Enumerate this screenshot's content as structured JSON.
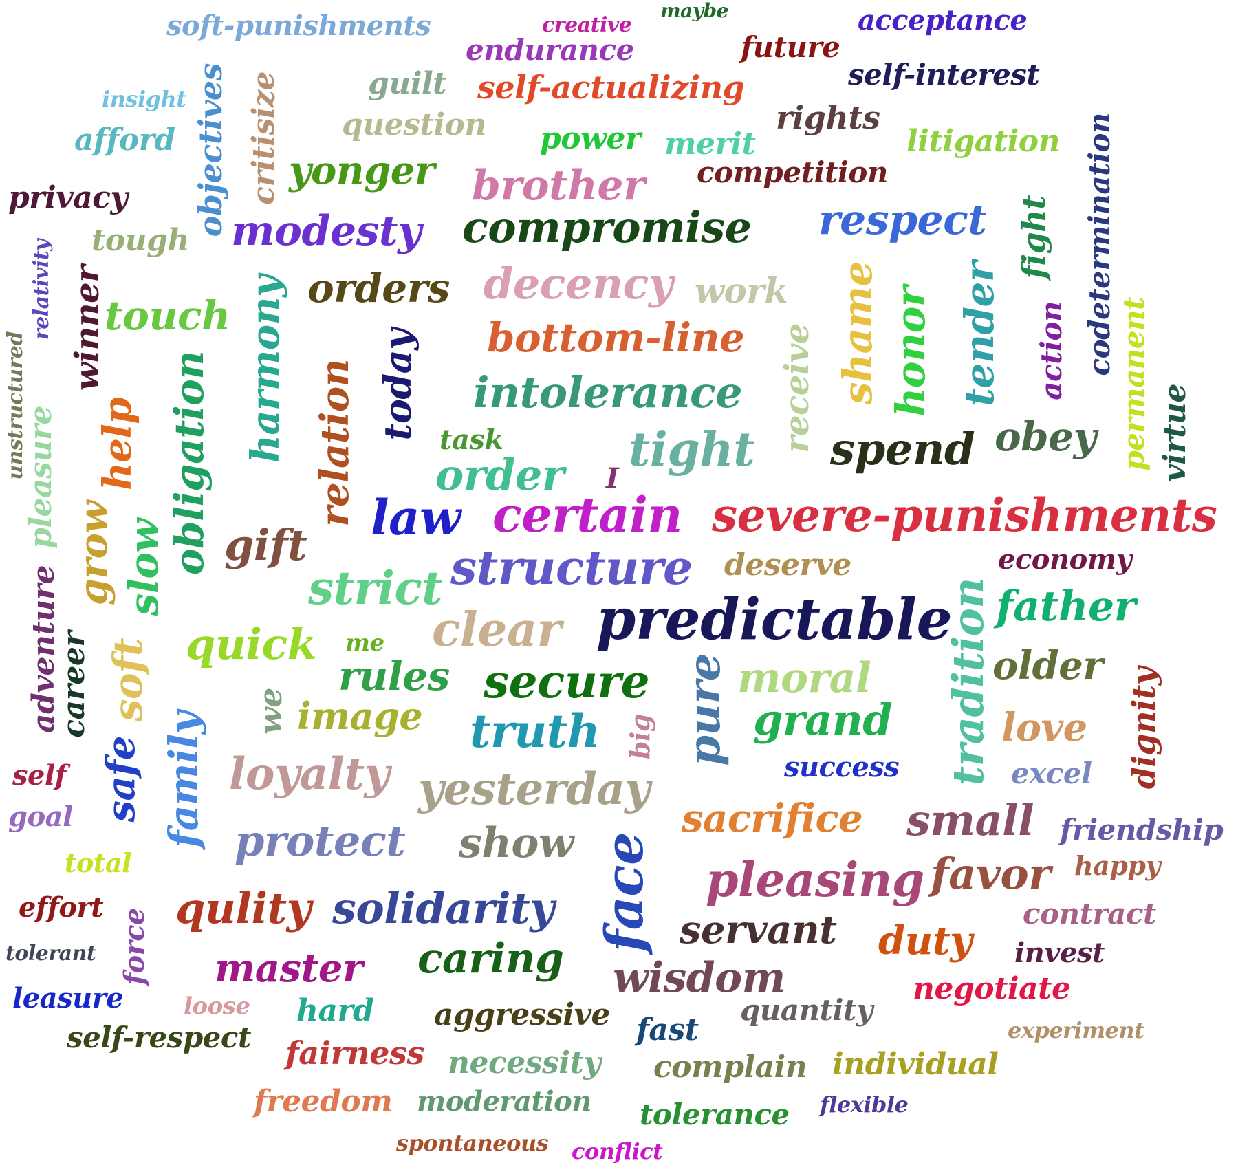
{
  "words": [
    {
      "text": "soft-punishments",
      "color": "#7aa8d8"
    },
    {
      "text": "creative",
      "color": "#c020a0"
    },
    {
      "text": "maybe",
      "color": "#1e6b28"
    },
    {
      "text": "acceptance",
      "color": "#4a20c8"
    },
    {
      "text": "endurance",
      "color": "#9a38b8"
    },
    {
      "text": "future",
      "color": "#8a1414"
    },
    {
      "text": "self-interest",
      "color": "#1e1e58"
    },
    {
      "text": "insight",
      "color": "#70c0e0"
    },
    {
      "text": "guilt",
      "color": "#88a890"
    },
    {
      "text": "self-actualizing",
      "color": "#e04a28"
    },
    {
      "text": "objectives",
      "color": "#4a90d0"
    },
    {
      "text": "critisize",
      "color": "#b89070"
    },
    {
      "text": "question",
      "color": "#b8b890"
    },
    {
      "text": "afford",
      "color": "#58b8c0"
    },
    {
      "text": "power",
      "color": "#20c838"
    },
    {
      "text": "merit",
      "color": "#50d0a8"
    },
    {
      "text": "rights",
      "color": "#5a4040"
    },
    {
      "text": "litigation",
      "color": "#90d040"
    },
    {
      "text": "codetermination",
      "color": "#2a3880"
    },
    {
      "text": "yonger",
      "color": "#489818"
    },
    {
      "text": "competition",
      "color": "#702020"
    },
    {
      "text": "brother",
      "color": "#d078a8"
    },
    {
      "text": "privacy",
      "color": "#501838"
    },
    {
      "text": "modesty",
      "color": "#6a30d0"
    },
    {
      "text": "compromise",
      "color": "#184818"
    },
    {
      "text": "respect",
      "color": "#3a68d8"
    },
    {
      "text": "tough",
      "color": "#98b078"
    },
    {
      "text": "fight",
      "color": "#208848"
    },
    {
      "text": "relativity",
      "color": "#5848b8"
    },
    {
      "text": "winner",
      "color": "#501830"
    },
    {
      "text": "harmony",
      "color": "#28a890"
    },
    {
      "text": "orders",
      "color": "#584818"
    },
    {
      "text": "decency",
      "color": "#d8a0b0"
    },
    {
      "text": "work",
      "color": "#c0c8a8"
    },
    {
      "text": "shame",
      "color": "#e8c040"
    },
    {
      "text": "honor",
      "color": "#30d040"
    },
    {
      "text": "tender",
      "color": "#30a0a8"
    },
    {
      "text": "action",
      "color": "#8020a0"
    },
    {
      "text": "permanent",
      "color": "#c0e020"
    },
    {
      "text": "touch",
      "color": "#68c840"
    },
    {
      "text": "unstructured",
      "color": "#787858"
    },
    {
      "text": "bottom-line",
      "color": "#d86030"
    },
    {
      "text": "obligation",
      "color": "#20a060"
    },
    {
      "text": "relation",
      "color": "#b05020"
    },
    {
      "text": "today",
      "color": "#1a1a70"
    },
    {
      "text": "receive",
      "color": "#b8d098"
    },
    {
      "text": "intolerance",
      "color": "#38987a"
    },
    {
      "text": "virtue",
      "color": "#205848"
    },
    {
      "text": "help",
      "color": "#e06818"
    },
    {
      "text": "pleasure",
      "color": "#98d8a0"
    },
    {
      "text": "task",
      "color": "#489830"
    },
    {
      "text": "obey",
      "color": "#486848"
    },
    {
      "text": "tight",
      "color": "#68b0a0"
    },
    {
      "text": "spend",
      "color": "#283018"
    },
    {
      "text": "order",
      "color": "#40c090"
    },
    {
      "text": "I",
      "color": "#883070"
    },
    {
      "text": "grow",
      "color": "#c8a030"
    },
    {
      "text": "slow",
      "color": "#30c060"
    },
    {
      "text": "law",
      "color": "#2020c8"
    },
    {
      "text": "certain",
      "color": "#c020c8"
    },
    {
      "text": "severe-punishments",
      "color": "#d83040"
    },
    {
      "text": "gift",
      "color": "#805040"
    },
    {
      "text": "adventure",
      "color": "#703070"
    },
    {
      "text": "deserve",
      "color": "#b09050"
    },
    {
      "text": "economy",
      "color": "#701848"
    },
    {
      "text": "structure",
      "color": "#6058c8"
    },
    {
      "text": "strict",
      "color": "#60d088"
    },
    {
      "text": "tradition",
      "color": "#50c0a0"
    },
    {
      "text": "father",
      "color": "#10b070"
    },
    {
      "text": "career",
      "color": "#183828"
    },
    {
      "text": "clear",
      "color": "#c8b090"
    },
    {
      "text": "predictable",
      "color": "#181858"
    },
    {
      "text": "quick",
      "color": "#98d828"
    },
    {
      "text": "me",
      "color": "#68b020"
    },
    {
      "text": "soft",
      "color": "#e0c058"
    },
    {
      "text": "older",
      "color": "#607038"
    },
    {
      "text": "rules",
      "color": "#30a048"
    },
    {
      "text": "secure",
      "color": "#107010"
    },
    {
      "text": "pure",
      "color": "#4878a8"
    },
    {
      "text": "moral",
      "color": "#b0d880"
    },
    {
      "text": "dignity",
      "color": "#a03020"
    },
    {
      "text": "we",
      "color": "#80a080"
    },
    {
      "text": "image",
      "color": "#a8b030"
    },
    {
      "text": "grand",
      "color": "#20b050"
    },
    {
      "text": "family",
      "color": "#4888e0"
    },
    {
      "text": "truth",
      "color": "#2098b0"
    },
    {
      "text": "big",
      "color": "#c08098"
    },
    {
      "text": "love",
      "color": "#d09860"
    },
    {
      "text": "safe",
      "color": "#2040c8"
    },
    {
      "text": "self",
      "color": "#a82048"
    },
    {
      "text": "loyalty",
      "color": "#c09898"
    },
    {
      "text": "success",
      "color": "#2030c8"
    },
    {
      "text": "excel",
      "color": "#7888c0"
    },
    {
      "text": "yesterday",
      "color": "#a8a088"
    },
    {
      "text": "goal",
      "color": "#9868c0"
    },
    {
      "text": "sacrifice",
      "color": "#e08030"
    },
    {
      "text": "small",
      "color": "#885068"
    },
    {
      "text": "friendship",
      "color": "#6858a8"
    },
    {
      "text": "protect",
      "color": "#7880b8"
    },
    {
      "text": "show",
      "color": "#808070"
    },
    {
      "text": "face",
      "color": "#2848b8"
    },
    {
      "text": "total",
      "color": "#c8e020"
    },
    {
      "text": "happy",
      "color": "#a86048"
    },
    {
      "text": "pleasing",
      "color": "#a84878"
    },
    {
      "text": "favor",
      "color": "#985040"
    },
    {
      "text": "effort",
      "color": "#901818"
    },
    {
      "text": "force",
      "color": "#8848a8"
    },
    {
      "text": "qulity",
      "color": "#b03820"
    },
    {
      "text": "solidarity",
      "color": "#384898"
    },
    {
      "text": "contract",
      "color": "#a86088"
    },
    {
      "text": "servant",
      "color": "#483030"
    },
    {
      "text": "duty",
      "color": "#d05010"
    },
    {
      "text": "tolerant",
      "color": "#404858"
    },
    {
      "text": "invest",
      "color": "#582048"
    },
    {
      "text": "caring",
      "color": "#186018"
    },
    {
      "text": "master",
      "color": "#a01888"
    },
    {
      "text": "wisdom",
      "color": "#704858"
    },
    {
      "text": "negotiate",
      "color": "#e01848"
    },
    {
      "text": "leasure",
      "color": "#1828c8"
    },
    {
      "text": "loose",
      "color": "#d898a0"
    },
    {
      "text": "hard",
      "color": "#20a890"
    },
    {
      "text": "aggressive",
      "color": "#484018"
    },
    {
      "text": "quantity",
      "color": "#686060"
    },
    {
      "text": "experiment",
      "color": "#b09068"
    },
    {
      "text": "self-respect",
      "color": "#384818"
    },
    {
      "text": "fast",
      "color": "#184878"
    },
    {
      "text": "fairness",
      "color": "#c03838"
    },
    {
      "text": "necessity",
      "color": "#70a880"
    },
    {
      "text": "complain",
      "color": "#788050"
    },
    {
      "text": "individual",
      "color": "#a8a020"
    },
    {
      "text": "freedom",
      "color": "#e07850"
    },
    {
      "text": "moderation",
      "color": "#609870"
    },
    {
      "text": "flexible",
      "color": "#503898"
    },
    {
      "text": "tolerance",
      "color": "#289030"
    },
    {
      "text": "spontaneous",
      "color": "#a85028"
    },
    {
      "text": "conflict",
      "color": "#c818c8"
    }
  ]
}
